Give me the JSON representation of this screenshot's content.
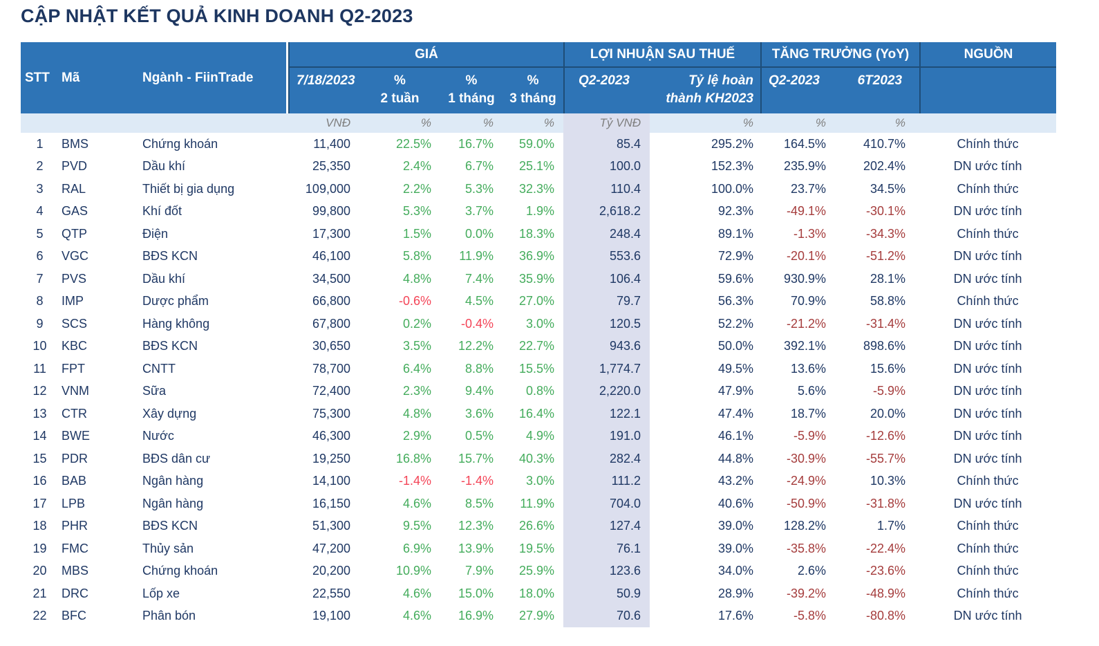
{
  "page_title": "CẬP NHẬT KẾT QUẢ KINH DOANH Q2-2023",
  "colors": {
    "header_blue": "#2E74B6",
    "header_divider_navy": "#1E4D78",
    "title_navy": "#1D3660",
    "body_navy": "#1F3864",
    "positive_green": "#44AC5C",
    "negative_bright_red": "#F44457",
    "negative_dark_red": "#A53C3C",
    "units_row_bg": "#DEEAF6",
    "units_text_gray": "#7F7F7F",
    "highlight_column_bg": "#DCDFEE"
  },
  "chart_data": {
    "type": "table",
    "title": "CẬP NHẬT KẾT QUẢ KINH DOANH Q2-2023",
    "header": {
      "stt": "STT",
      "ma": "Mã",
      "nganh": "Ngành - FiinTrade",
      "group_price": "GIÁ",
      "group_profit": "LỢI NHUẬN SAU THUẾ",
      "group_growth": "TĂNG TRƯỞNG (YoY)",
      "group_source": "NGUỒN",
      "sub_date": "7/18/2023",
      "sub_pct2w_1": "%",
      "sub_pct2w_2": "2 tuần",
      "sub_pct1m_1": "%",
      "sub_pct1m_2": "1 tháng",
      "sub_pct3m_1": "%",
      "sub_pct3m_2": "3 tháng",
      "sub_profit_q2": "Q2-2023",
      "sub_profit_ratio_1": "Tỷ lệ hoàn",
      "sub_profit_ratio_2": "thành KH2023",
      "sub_growth_q2": "Q2-2023",
      "sub_growth_6t": "6T2023"
    },
    "units": [
      "",
      "",
      "",
      "VNĐ",
      "%",
      "%",
      "%",
      "Tỷ VNĐ",
      "%",
      "%",
      "%",
      ""
    ],
    "columns": [
      "STT",
      "Mã",
      "Ngành - FiinTrade",
      "GIÁ 7/18/2023 (VNĐ)",
      "% 2 tuần",
      "% 1 tháng",
      "% 3 tháng",
      "LỢI NHUẬN SAU THUẾ Q2-2023 (Tỷ VNĐ)",
      "Tỷ lệ hoàn thành KH2023 (%)",
      "TĂNG TRƯỞNG (YoY) Q2-2023 (%)",
      "TĂNG TRƯỞNG (YoY) 6T2023 (%)",
      "NGUỒN"
    ],
    "rows": [
      [
        "1",
        "BMS",
        "Chứng khoán",
        "11,400",
        "22.5%",
        "16.7%",
        "59.0%",
        "85.4",
        "295.2%",
        "164.5%",
        "410.7%",
        "Chính thức"
      ],
      [
        "2",
        "PVD",
        "Dầu khí",
        "25,350",
        "2.4%",
        "6.7%",
        "25.1%",
        "100.0",
        "152.3%",
        "235.9%",
        "202.4%",
        "DN ước tính"
      ],
      [
        "3",
        "RAL",
        "Thiết bị gia dụng",
        "109,000",
        "2.2%",
        "5.3%",
        "32.3%",
        "110.4",
        "100.0%",
        "23.7%",
        "34.5%",
        "Chính thức"
      ],
      [
        "4",
        "GAS",
        "Khí đốt",
        "99,800",
        "5.3%",
        "3.7%",
        "1.9%",
        "2,618.2",
        "92.3%",
        "-49.1%",
        "-30.1%",
        "DN ước tính"
      ],
      [
        "5",
        "QTP",
        "Điện",
        "17,300",
        "1.5%",
        "0.0%",
        "18.3%",
        "248.4",
        "89.1%",
        "-1.3%",
        "-34.3%",
        "Chính thức"
      ],
      [
        "6",
        "VGC",
        "BĐS KCN",
        "46,100",
        "5.8%",
        "11.9%",
        "36.9%",
        "553.6",
        "72.9%",
        "-20.1%",
        "-51.2%",
        "DN ước tính"
      ],
      [
        "7",
        "PVS",
        "Dầu khí",
        "34,500",
        "4.8%",
        "7.4%",
        "35.9%",
        "106.4",
        "59.6%",
        "930.9%",
        "28.1%",
        "DN ước tính"
      ],
      [
        "8",
        "IMP",
        "Dược phẩm",
        "66,800",
        "-0.6%",
        "4.5%",
        "27.0%",
        "79.7",
        "56.3%",
        "70.9%",
        "58.8%",
        "Chính thức"
      ],
      [
        "9",
        "SCS",
        "Hàng không",
        "67,800",
        "0.2%",
        "-0.4%",
        "3.0%",
        "120.5",
        "52.2%",
        "-21.2%",
        "-31.4%",
        "DN ước tính"
      ],
      [
        "10",
        "KBC",
        "BĐS KCN",
        "30,650",
        "3.5%",
        "12.2%",
        "22.7%",
        "943.6",
        "50.0%",
        "392.1%",
        "898.6%",
        "DN ước tính"
      ],
      [
        "11",
        "FPT",
        "CNTT",
        "78,700",
        "6.4%",
        "8.8%",
        "15.5%",
        "1,774.7",
        "49.5%",
        "13.6%",
        "15.6%",
        "DN ước tính"
      ],
      [
        "12",
        "VNM",
        "Sữa",
        "72,400",
        "2.3%",
        "9.4%",
        "0.8%",
        "2,220.0",
        "47.9%",
        "5.6%",
        "-5.9%",
        "DN ước tính"
      ],
      [
        "13",
        "CTR",
        "Xây dựng",
        "75,300",
        "4.8%",
        "3.6%",
        "16.4%",
        "122.1",
        "47.4%",
        "18.7%",
        "20.0%",
        "DN ước tính"
      ],
      [
        "14",
        "BWE",
        "Nước",
        "46,300",
        "2.9%",
        "0.5%",
        "4.9%",
        "191.0",
        "46.1%",
        "-5.9%",
        "-12.6%",
        "DN ước tính"
      ],
      [
        "15",
        "PDR",
        "BĐS dân cư",
        "19,250",
        "16.8%",
        "15.7%",
        "40.3%",
        "282.4",
        "44.8%",
        "-30.9%",
        "-55.7%",
        "DN ước tính"
      ],
      [
        "16",
        "BAB",
        "Ngân hàng",
        "14,100",
        "-1.4%",
        "-1.4%",
        "3.0%",
        "111.2",
        "43.2%",
        "-24.9%",
        "10.3%",
        "Chính thức"
      ],
      [
        "17",
        "LPB",
        "Ngân hàng",
        "16,150",
        "4.6%",
        "8.5%",
        "11.9%",
        "704.0",
        "40.6%",
        "-50.9%",
        "-31.8%",
        "DN ước tính"
      ],
      [
        "18",
        "PHR",
        "BĐS KCN",
        "51,300",
        "9.5%",
        "12.3%",
        "26.6%",
        "127.4",
        "39.0%",
        "128.2%",
        "1.7%",
        "Chính thức"
      ],
      [
        "19",
        "FMC",
        "Thủy sản",
        "47,200",
        "6.9%",
        "13.9%",
        "19.5%",
        "76.1",
        "39.0%",
        "-35.8%",
        "-22.4%",
        "Chính thức"
      ],
      [
        "20",
        "MBS",
        "Chứng khoán",
        "20,200",
        "10.9%",
        "7.9%",
        "25.9%",
        "123.6",
        "34.0%",
        "2.6%",
        "-23.6%",
        "Chính thức"
      ],
      [
        "21",
        "DRC",
        "Lốp xe",
        "22,550",
        "4.6%",
        "15.0%",
        "18.0%",
        "50.9",
        "28.9%",
        "-39.2%",
        "-48.9%",
        "Chính thức"
      ],
      [
        "22",
        "BFC",
        "Phân bón",
        "19,100",
        "4.6%",
        "16.9%",
        "27.9%",
        "70.6",
        "17.6%",
        "-5.8%",
        "-80.8%",
        "DN ước tính"
      ]
    ]
  }
}
